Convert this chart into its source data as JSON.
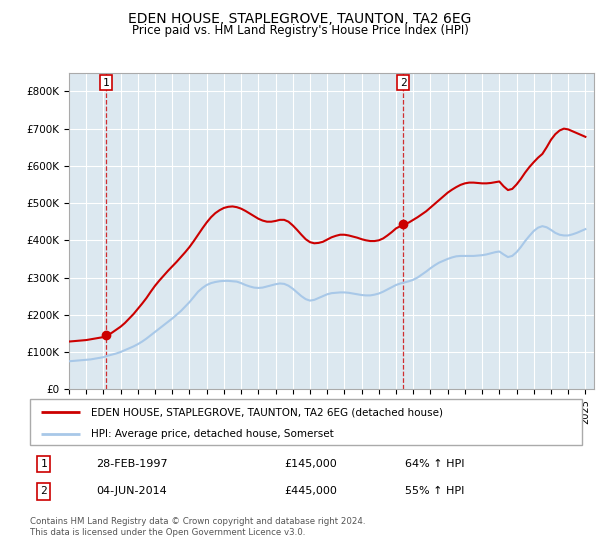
{
  "title": "EDEN HOUSE, STAPLEGROVE, TAUNTON, TA2 6EG",
  "subtitle": "Price paid vs. HM Land Registry's House Price Index (HPI)",
  "ylim": [
    0,
    850000
  ],
  "yticks": [
    0,
    100000,
    200000,
    300000,
    400000,
    500000,
    600000,
    700000,
    800000
  ],
  "ytick_labels": [
    "£0",
    "£100K",
    "£200K",
    "£300K",
    "£400K",
    "£500K",
    "£600K",
    "£700K",
    "£800K"
  ],
  "sale1_x": 1997.15,
  "sale1_y": 145000,
  "sale1_label": "1",
  "sale1_date": "28-FEB-1997",
  "sale1_price": "£145,000",
  "sale1_hpi": "64% ↑ HPI",
  "sale2_x": 2014.42,
  "sale2_y": 445000,
  "sale2_label": "2",
  "sale2_date": "04-JUN-2014",
  "sale2_price": "£445,000",
  "sale2_hpi": "55% ↑ HPI",
  "hpi_color": "#a8c8e8",
  "price_color": "#cc0000",
  "marker_color": "#cc0000",
  "dashed_color": "#cc0000",
  "sale_box_color": "#cc0000",
  "chart_bg": "#dce8f0",
  "legend_line1": "EDEN HOUSE, STAPLEGROVE, TAUNTON, TA2 6EG (detached house)",
  "legend_line2": "HPI: Average price, detached house, Somerset",
  "footnote1": "Contains HM Land Registry data © Crown copyright and database right 2024.",
  "footnote2": "This data is licensed under the Open Government Licence v3.0.",
  "hpi_data_x": [
    1995.0,
    1995.25,
    1995.5,
    1995.75,
    1996.0,
    1996.25,
    1996.5,
    1996.75,
    1997.0,
    1997.25,
    1997.5,
    1997.75,
    1998.0,
    1998.25,
    1998.5,
    1998.75,
    1999.0,
    1999.25,
    1999.5,
    1999.75,
    2000.0,
    2000.25,
    2000.5,
    2000.75,
    2001.0,
    2001.25,
    2001.5,
    2001.75,
    2002.0,
    2002.25,
    2002.5,
    2002.75,
    2003.0,
    2003.25,
    2003.5,
    2003.75,
    2004.0,
    2004.25,
    2004.5,
    2004.75,
    2005.0,
    2005.25,
    2005.5,
    2005.75,
    2006.0,
    2006.25,
    2006.5,
    2006.75,
    2007.0,
    2007.25,
    2007.5,
    2007.75,
    2008.0,
    2008.25,
    2008.5,
    2008.75,
    2009.0,
    2009.25,
    2009.5,
    2009.75,
    2010.0,
    2010.25,
    2010.5,
    2010.75,
    2011.0,
    2011.25,
    2011.5,
    2011.75,
    2012.0,
    2012.25,
    2012.5,
    2012.75,
    2013.0,
    2013.25,
    2013.5,
    2013.75,
    2014.0,
    2014.25,
    2014.5,
    2014.75,
    2015.0,
    2015.25,
    2015.5,
    2015.75,
    2016.0,
    2016.25,
    2016.5,
    2016.75,
    2017.0,
    2017.25,
    2017.5,
    2017.75,
    2018.0,
    2018.25,
    2018.5,
    2018.75,
    2019.0,
    2019.25,
    2019.5,
    2019.75,
    2020.0,
    2020.25,
    2020.5,
    2020.75,
    2021.0,
    2021.25,
    2021.5,
    2021.75,
    2022.0,
    2022.25,
    2022.5,
    2022.75,
    2023.0,
    2023.25,
    2023.5,
    2023.75,
    2024.0,
    2024.25,
    2024.5,
    2024.75,
    2025.0
  ],
  "hpi_data_y": [
    75000,
    76000,
    77000,
    78000,
    79000,
    80000,
    82000,
    84000,
    86000,
    90000,
    93000,
    96000,
    100000,
    105000,
    110000,
    115000,
    121000,
    128000,
    136000,
    145000,
    154000,
    163000,
    172000,
    181000,
    190000,
    200000,
    210000,
    222000,
    234000,
    248000,
    262000,
    272000,
    280000,
    285000,
    288000,
    290000,
    291000,
    291000,
    290000,
    289000,
    285000,
    280000,
    276000,
    273000,
    272000,
    273000,
    276000,
    279000,
    282000,
    284000,
    283000,
    278000,
    270000,
    260000,
    250000,
    242000,
    238000,
    240000,
    245000,
    250000,
    255000,
    258000,
    259000,
    260000,
    260000,
    259000,
    257000,
    255000,
    253000,
    252000,
    252000,
    254000,
    257000,
    262000,
    268000,
    274000,
    280000,
    284000,
    287000,
    290000,
    294000,
    300000,
    308000,
    316000,
    325000,
    333000,
    340000,
    345000,
    350000,
    354000,
    357000,
    358000,
    358000,
    358000,
    358000,
    359000,
    360000,
    362000,
    365000,
    368000,
    370000,
    362000,
    355000,
    358000,
    368000,
    382000,
    398000,
    412000,
    425000,
    434000,
    438000,
    435000,
    428000,
    420000,
    415000,
    413000,
    413000,
    416000,
    420000,
    425000,
    430000
  ],
  "price_data_x": [
    1995.0,
    1995.25,
    1995.5,
    1995.75,
    1996.0,
    1996.25,
    1996.5,
    1996.75,
    1997.0,
    1997.25,
    1997.5,
    1997.75,
    1998.0,
    1998.25,
    1998.5,
    1998.75,
    1999.0,
    1999.25,
    1999.5,
    1999.75,
    2000.0,
    2000.25,
    2000.5,
    2000.75,
    2001.0,
    2001.25,
    2001.5,
    2001.75,
    2002.0,
    2002.25,
    2002.5,
    2002.75,
    2003.0,
    2003.25,
    2003.5,
    2003.75,
    2004.0,
    2004.25,
    2004.5,
    2004.75,
    2005.0,
    2005.25,
    2005.5,
    2005.75,
    2006.0,
    2006.25,
    2006.5,
    2006.75,
    2007.0,
    2007.25,
    2007.5,
    2007.75,
    2008.0,
    2008.25,
    2008.5,
    2008.75,
    2009.0,
    2009.25,
    2009.5,
    2009.75,
    2010.0,
    2010.25,
    2010.5,
    2010.75,
    2011.0,
    2011.25,
    2011.5,
    2011.75,
    2012.0,
    2012.25,
    2012.5,
    2012.75,
    2013.0,
    2013.25,
    2013.5,
    2013.75,
    2014.0,
    2014.25,
    2014.5,
    2014.75,
    2015.0,
    2015.25,
    2015.5,
    2015.75,
    2016.0,
    2016.25,
    2016.5,
    2016.75,
    2017.0,
    2017.25,
    2017.5,
    2017.75,
    2018.0,
    2018.25,
    2018.5,
    2018.75,
    2019.0,
    2019.25,
    2019.5,
    2019.75,
    2020.0,
    2020.25,
    2020.5,
    2020.75,
    2021.0,
    2021.25,
    2021.5,
    2021.75,
    2022.0,
    2022.25,
    2022.5,
    2022.75,
    2023.0,
    2023.25,
    2023.5,
    2023.75,
    2024.0,
    2024.25,
    2024.5,
    2024.75,
    2025.0
  ],
  "price_data_y": [
    128000,
    129000,
    130000,
    131000,
    132000,
    134000,
    136000,
    138000,
    140000,
    145000,
    152000,
    160000,
    168000,
    178000,
    190000,
    202000,
    216000,
    230000,
    245000,
    262000,
    278000,
    292000,
    305000,
    318000,
    330000,
    342000,
    355000,
    368000,
    382000,
    398000,
    415000,
    432000,
    448000,
    462000,
    473000,
    481000,
    487000,
    490000,
    491000,
    489000,
    485000,
    479000,
    472000,
    465000,
    458000,
    453000,
    450000,
    450000,
    452000,
    455000,
    455000,
    450000,
    440000,
    428000,
    415000,
    403000,
    395000,
    392000,
    393000,
    396000,
    402000,
    408000,
    412000,
    415000,
    415000,
    413000,
    410000,
    407000,
    403000,
    400000,
    398000,
    398000,
    400000,
    405000,
    413000,
    422000,
    432000,
    438000,
    443000,
    448000,
    455000,
    462000,
    470000,
    478000,
    488000,
    498000,
    508000,
    518000,
    528000,
    536000,
    543000,
    549000,
    553000,
    555000,
    555000,
    554000,
    553000,
    553000,
    554000,
    556000,
    558000,
    545000,
    535000,
    538000,
    550000,
    565000,
    582000,
    597000,
    610000,
    622000,
    632000,
    650000,
    670000,
    685000,
    695000,
    700000,
    698000,
    693000,
    688000,
    683000,
    678000
  ],
  "xlim": [
    1995,
    2025.5
  ],
  "xticks": [
    1995,
    1996,
    1997,
    1998,
    1999,
    2000,
    2001,
    2002,
    2003,
    2004,
    2005,
    2006,
    2007,
    2008,
    2009,
    2010,
    2011,
    2012,
    2013,
    2014,
    2015,
    2016,
    2017,
    2018,
    2019,
    2020,
    2021,
    2022,
    2023,
    2024,
    2025
  ]
}
